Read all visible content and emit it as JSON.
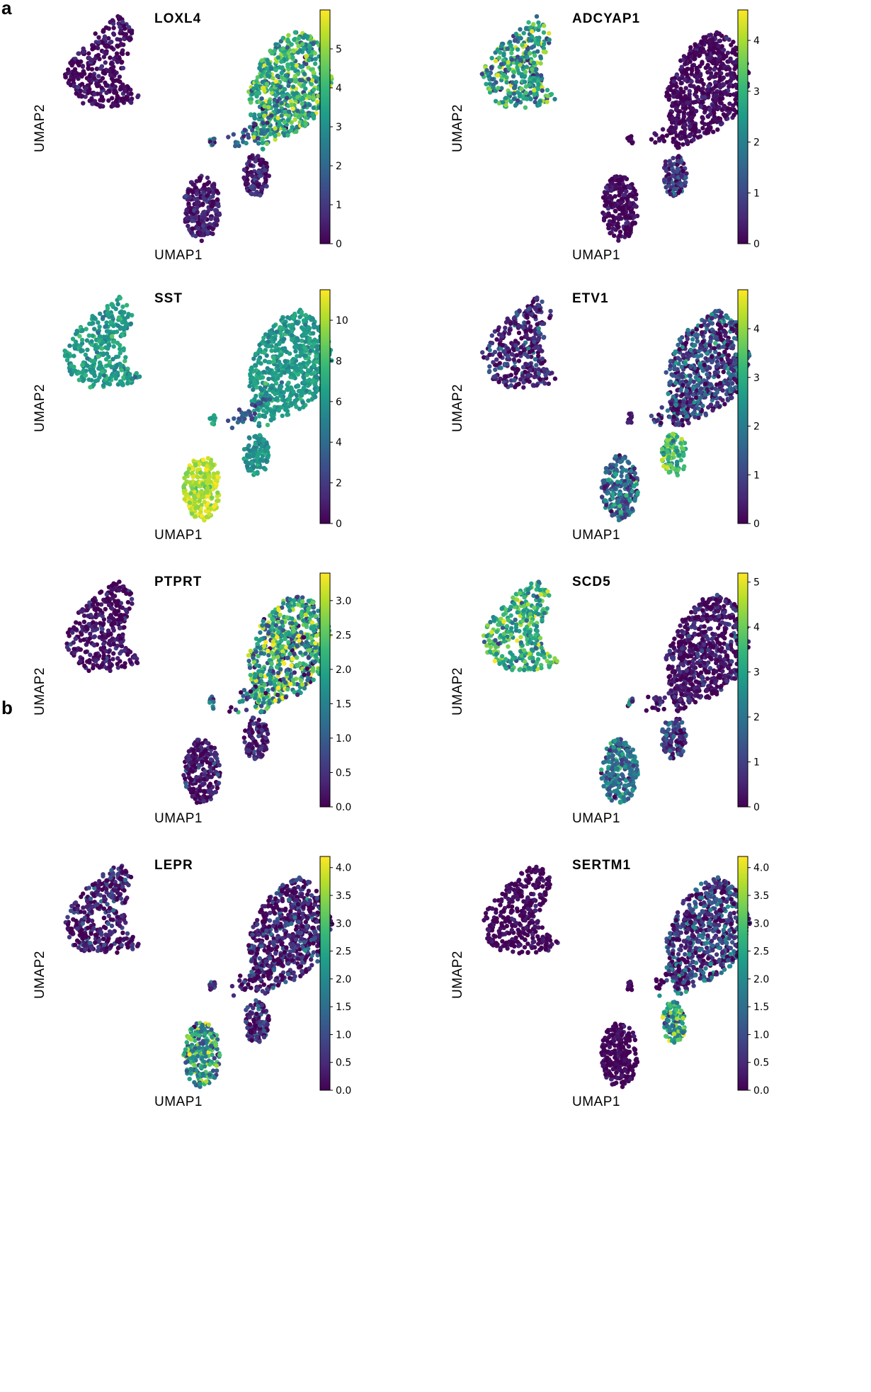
{
  "figure": {
    "panel_labels": [
      "a",
      "b"
    ]
  },
  "colormap": {
    "name": "viridis",
    "stops": [
      "#440154",
      "#482878",
      "#3e4989",
      "#31688e",
      "#26828e",
      "#1f9e89",
      "#35b779",
      "#6ece58",
      "#b5de2b",
      "#fde725"
    ]
  },
  "chart_data": [
    {
      "type": "scatter",
      "title": "LOXL4",
      "xlabel": "UMAP1",
      "ylabel": "UMAP2",
      "colorbar": {
        "min": 0,
        "max": 6.0,
        "ticks": [
          "0",
          "1",
          "2",
          "3",
          "4",
          "5"
        ]
      },
      "cluster_levels": {
        "top_left": 0.15,
        "big": 3.6,
        "bottom_left": 0.5,
        "bottom_mid": 0.4,
        "small_top": 1.5
      },
      "cluster_spread": {
        "top_left": 0.4,
        "big": 1.2,
        "bottom_left": 0.5,
        "bottom_mid": 0.5,
        "small_top": 1.0
      }
    },
    {
      "type": "scatter",
      "title": "ADCYAP1",
      "xlabel": "UMAP1",
      "ylabel": "UMAP2",
      "colorbar": {
        "min": 0,
        "max": 4.6,
        "ticks": [
          "0",
          "1",
          "2",
          "3",
          "4"
        ]
      },
      "cluster_levels": {
        "top_left": 2.4,
        "big": 0.1,
        "bottom_left": 0.1,
        "bottom_mid": 0.7,
        "small_top": 0.1
      },
      "cluster_spread": {
        "top_left": 1.0,
        "big": 0.25,
        "bottom_left": 0.3,
        "bottom_mid": 0.7,
        "small_top": 0.2
      }
    },
    {
      "type": "scatter",
      "title": "SST",
      "xlabel": "UMAP1",
      "ylabel": "UMAP2",
      "colorbar": {
        "min": 0,
        "max": 11.5,
        "ticks": [
          "0",
          "2",
          "4",
          "6",
          "8",
          "10"
        ]
      },
      "cluster_levels": {
        "top_left": 6.3,
        "big": 6.2,
        "bottom_left": 10.2,
        "bottom_mid": 6.0,
        "small_top": 6.5
      },
      "cluster_spread": {
        "top_left": 0.9,
        "big": 0.8,
        "bottom_left": 0.8,
        "bottom_mid": 0.8,
        "small_top": 0.6
      }
    },
    {
      "type": "scatter",
      "title": "ETV1",
      "xlabel": "UMAP1",
      "ylabel": "UMAP2",
      "colorbar": {
        "min": 0,
        "max": 4.8,
        "ticks": [
          "0",
          "1",
          "2",
          "3",
          "4"
        ]
      },
      "cluster_levels": {
        "top_left": 0.5,
        "big": 1.0,
        "bottom_left": 1.6,
        "bottom_mid": 3.2,
        "small_top": 0.4
      },
      "cluster_spread": {
        "top_left": 0.6,
        "big": 0.9,
        "bottom_left": 0.9,
        "bottom_mid": 0.7,
        "small_top": 0.4
      }
    },
    {
      "type": "scatter",
      "title": "PTPRT",
      "xlabel": "UMAP1",
      "ylabel": "UMAP2",
      "colorbar": {
        "min": 0,
        "max": 3.4,
        "ticks": [
          "0.0",
          "0.5",
          "1.0",
          "1.5",
          "2.0",
          "2.5",
          "3.0"
        ]
      },
      "cluster_levels": {
        "top_left": 0.1,
        "big": 1.9,
        "bottom_left": 0.15,
        "bottom_mid": 0.3,
        "small_top": 0.8
      },
      "cluster_spread": {
        "top_left": 0.3,
        "big": 0.9,
        "bottom_left": 0.4,
        "bottom_mid": 0.4,
        "small_top": 0.6
      }
    },
    {
      "type": "scatter",
      "title": "SCD5",
      "xlabel": "UMAP1",
      "ylabel": "UMAP2",
      "colorbar": {
        "min": 0,
        "max": 5.2,
        "ticks": [
          "0",
          "1",
          "2",
          "3",
          "4",
          "5"
        ]
      },
      "cluster_levels": {
        "top_left": 3.2,
        "big": 0.25,
        "bottom_left": 2.0,
        "bottom_mid": 0.9,
        "small_top": 1.5
      },
      "cluster_spread": {
        "top_left": 0.9,
        "big": 0.5,
        "bottom_left": 0.8,
        "bottom_mid": 0.8,
        "small_top": 1.0
      }
    },
    {
      "type": "scatter",
      "title": "LEPR",
      "xlabel": "UMAP1",
      "ylabel": "UMAP2",
      "colorbar": {
        "min": 0,
        "max": 4.2,
        "ticks": [
          "0.0",
          "0.5",
          "1.0",
          "1.5",
          "2.0",
          "2.5",
          "3.0",
          "3.5",
          "4.0"
        ]
      },
      "cluster_levels": {
        "top_left": 0.3,
        "big": 0.35,
        "bottom_left": 2.3,
        "bottom_mid": 0.5,
        "small_top": 0.5
      },
      "cluster_spread": {
        "top_left": 0.5,
        "big": 0.6,
        "bottom_left": 1.0,
        "bottom_mid": 0.6,
        "small_top": 0.5
      }
    },
    {
      "type": "scatter",
      "title": "SERTM1",
      "xlabel": "UMAP1",
      "ylabel": "UMAP2",
      "colorbar": {
        "min": 0,
        "max": 4.2,
        "ticks": [
          "0.0",
          "0.5",
          "1.0",
          "1.5",
          "2.0",
          "2.5",
          "3.0",
          "3.5",
          "4.0"
        ]
      },
      "cluster_levels": {
        "top_left": 0.05,
        "big": 0.7,
        "bottom_left": 0.05,
        "bottom_mid": 2.3,
        "small_top": 0.1
      },
      "cluster_spread": {
        "top_left": 0.2,
        "big": 0.8,
        "bottom_left": 0.2,
        "bottom_mid": 0.9,
        "small_top": 0.2
      }
    }
  ]
}
